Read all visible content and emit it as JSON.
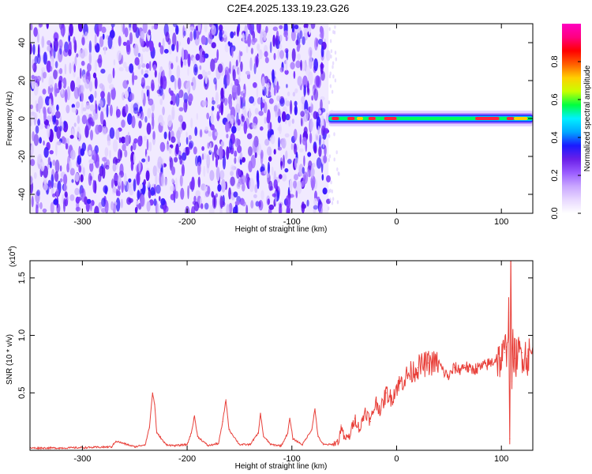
{
  "title": "C2E4.2025.133.19.23.G26",
  "chart_data": [
    {
      "type": "heatmap",
      "title": "C2E4.2025.133.19.23.G26",
      "xlabel": "Height of straight line (km)",
      "ylabel": "Frequency (Hz)",
      "xlim": [
        -350,
        130
      ],
      "ylim": [
        -50,
        50
      ],
      "x_ticks": [
        -300,
        -200,
        -100,
        0,
        100
      ],
      "x_tick_labels": [
        "-300",
        "-200",
        "-100",
        "0",
        "100"
      ],
      "y_ticks": [
        -40,
        -20,
        0,
        20,
        40
      ],
      "y_tick_labels": [
        "-40",
        "-20",
        "0",
        "20",
        "40"
      ],
      "noise_region_x": [
        -350,
        -65
      ],
      "signal_region_x": [
        -65,
        130
      ],
      "signal_frequency_hz": 0,
      "peak_segments": [
        {
          "x0": -62,
          "x1": -55,
          "value": 0.9
        },
        {
          "x0": -47,
          "x1": -40,
          "value": 0.95
        },
        {
          "x0": -38,
          "x1": -32,
          "value": 0.6
        },
        {
          "x0": -27,
          "x1": -20,
          "value": 0.9
        },
        {
          "x0": -12,
          "x1": 0,
          "value": 0.95
        },
        {
          "x0": 75,
          "x1": 98,
          "value": 0.9
        },
        {
          "x0": 105,
          "x1": 112,
          "value": 0.85
        },
        {
          "x0": 112,
          "x1": 125,
          "value": 0.7
        }
      ],
      "colorbar": {
        "label": "Normalized spectral amplitude",
        "range": [
          0,
          1
        ],
        "ticks": [
          0.0,
          0.2,
          0.4,
          0.6,
          0.8
        ],
        "tick_labels": [
          "0.0",
          "0.2",
          "0.4",
          "0.6",
          "0.8"
        ],
        "colors": [
          "#ffffff",
          "#e8d8ff",
          "#c9a6ff",
          "#9a5cff",
          "#6a1fe8",
          "#1a1aff",
          "#00a8ff",
          "#00f0ff",
          "#00ff40",
          "#c8ff00",
          "#ffd000",
          "#ff6000",
          "#ff0000",
          "#ff0080",
          "#ff00c0"
        ]
      },
      "noise_colors": [
        "#cdb6ff",
        "#9f6bff",
        "#7a33ff",
        "#5a10f0",
        "#3a18ff",
        "#e2d4ff"
      ]
    },
    {
      "type": "line",
      "xlabel": "Height of straight line (km)",
      "ylabel": "SNR (10 * v/v)",
      "scale_label": "(x10",
      "scale_exponent": "4",
      "xlim": [
        -350,
        130
      ],
      "ylim": [
        0,
        1.65
      ],
      "x_ticks": [
        -300,
        -200,
        -100,
        0,
        100
      ],
      "x_tick_labels": [
        "-300",
        "-200",
        "-100",
        "0",
        "100"
      ],
      "y_ticks": [
        0.5,
        1.0,
        1.5
      ],
      "y_tick_labels": [
        "0.5",
        "1.0",
        "1.5"
      ],
      "color": "#e8403a",
      "x": [
        -350,
        -320,
        -290,
        -272,
        -268,
        -250,
        -240,
        -236,
        -233,
        -231,
        -229,
        -226,
        -223,
        -220,
        -212,
        -200,
        -196,
        -193,
        -190,
        -180,
        -170,
        -166,
        -163,
        -160,
        -150,
        -140,
        -132,
        -130,
        -127,
        -120,
        -110,
        -104,
        -102,
        -99,
        -90,
        -81,
        -78,
        -75,
        -70,
        -62,
        -55,
        -53,
        -50,
        -45,
        -40,
        -35,
        -30,
        -25,
        -20,
        -15,
        -10,
        -5,
        0,
        5,
        10,
        20,
        30,
        40,
        45,
        50,
        55,
        60,
        65,
        70,
        80,
        90,
        95,
        100,
        103,
        105,
        107,
        108,
        109,
        110,
        111,
        113,
        115,
        120,
        125,
        130
      ],
      "y": [
        0.02,
        0.02,
        0.025,
        0.03,
        0.08,
        0.03,
        0.05,
        0.2,
        0.5,
        0.4,
        0.15,
        0.12,
        0.08,
        0.05,
        0.04,
        0.05,
        0.15,
        0.3,
        0.12,
        0.04,
        0.06,
        0.25,
        0.44,
        0.18,
        0.05,
        0.05,
        0.15,
        0.32,
        0.12,
        0.05,
        0.04,
        0.15,
        0.28,
        0.1,
        0.05,
        0.18,
        0.36,
        0.12,
        0.05,
        0.05,
        0.08,
        0.22,
        0.1,
        0.12,
        0.28,
        0.18,
        0.35,
        0.25,
        0.42,
        0.35,
        0.5,
        0.45,
        0.55,
        0.6,
        0.65,
        0.72,
        0.76,
        0.76,
        0.68,
        0.64,
        0.72,
        0.7,
        0.74,
        0.7,
        0.72,
        0.76,
        0.8,
        0.78,
        0.85,
        0.9,
        1.2,
        0.1,
        1.6,
        0.6,
        0.9,
        0.8,
        0.82,
        0.85,
        0.82,
        0.84
      ]
    }
  ]
}
